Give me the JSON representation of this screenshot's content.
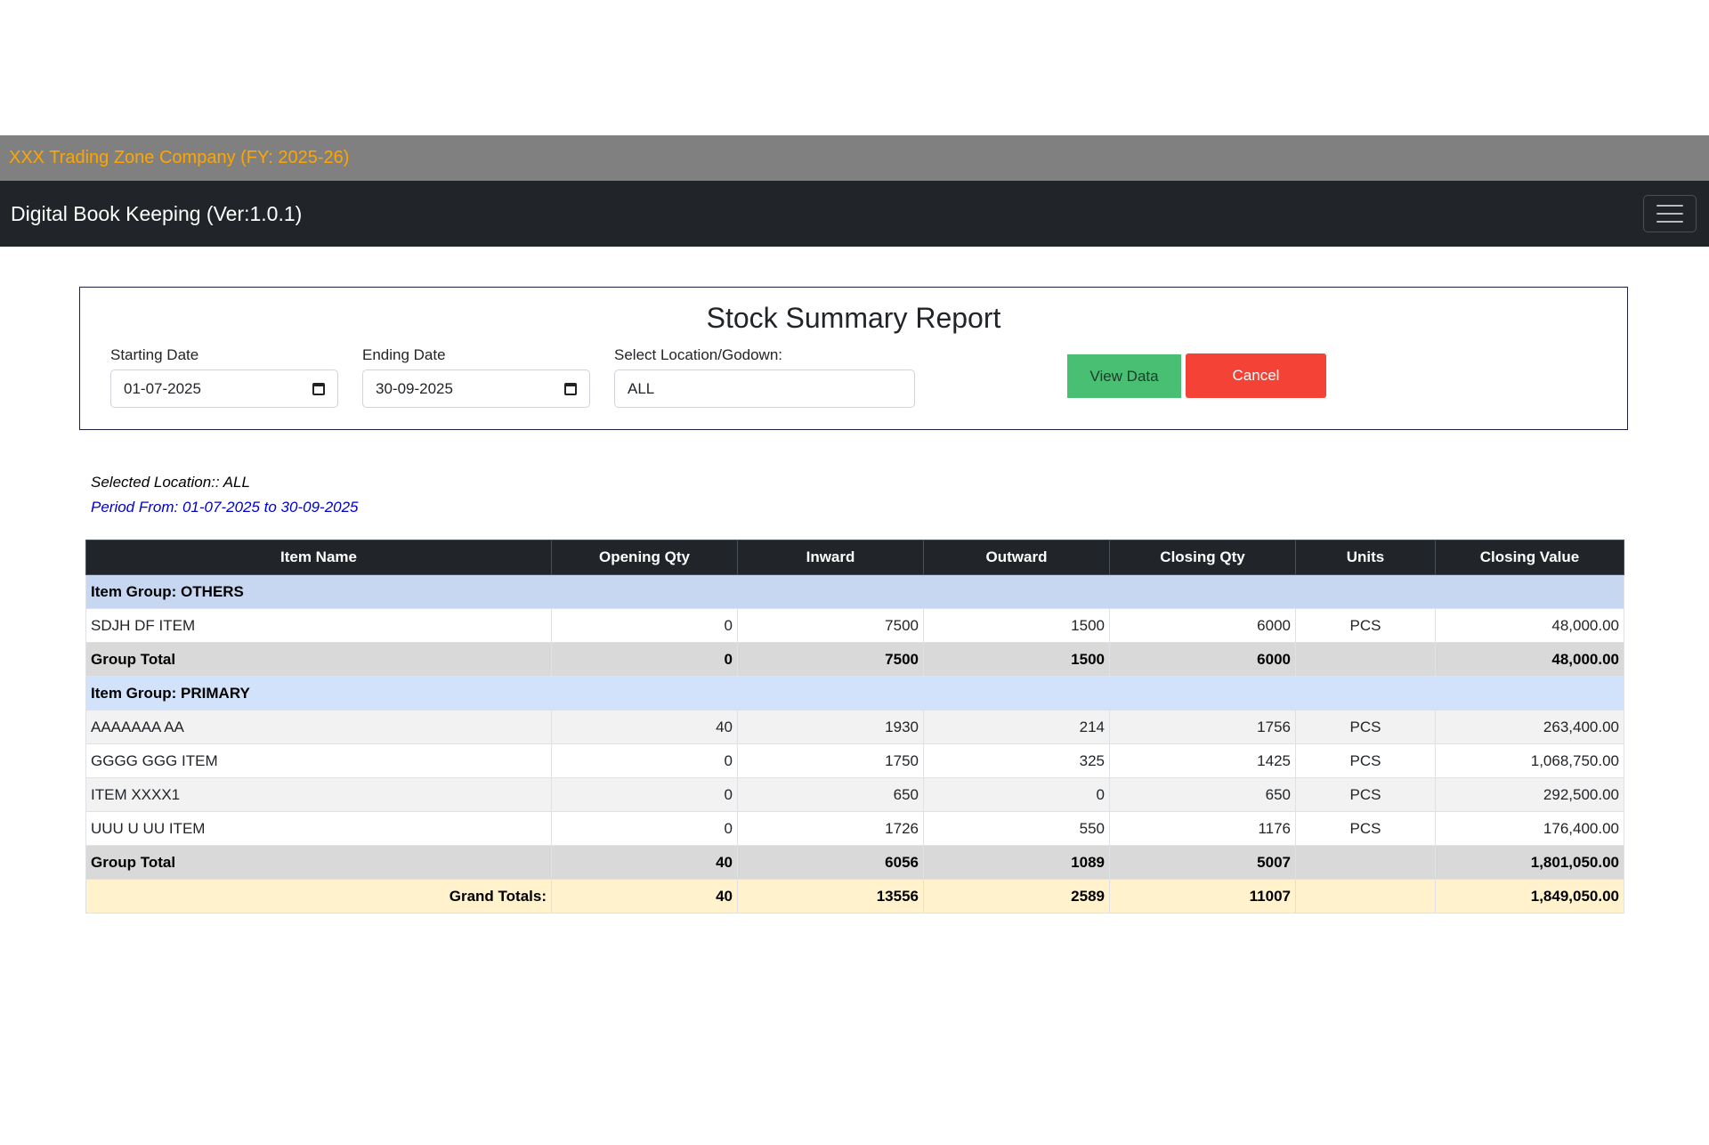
{
  "header": {
    "company": "XXX Trading Zone Company (FY: 2025-26)",
    "app_title": "Digital Book Keeping (Ver:1.0.1)"
  },
  "report": {
    "title": "Stock Summary Report",
    "start_label": "Starting Date",
    "start_value": "01-07-2025",
    "end_label": "Ending Date",
    "end_value": "30-09-2025",
    "location_label": "Select Location/Godown:",
    "location_value": "ALL",
    "view_button": "View Data",
    "cancel_button": "Cancel"
  },
  "info": {
    "location": "Selected Location:: ALL",
    "period": "Period From: 01-07-2025 to 30-09-2025"
  },
  "table": {
    "headers": [
      "Item Name",
      "Opening Qty",
      "Inward",
      "Outward",
      "Closing Qty",
      "Units",
      "Closing Value"
    ],
    "groups": [
      {
        "title": "Item Group: OTHERS",
        "items": [
          [
            "SDJH DF ITEM",
            "0",
            "7500",
            "1500",
            "6000",
            "PCS",
            "48,000.00"
          ]
        ],
        "total": [
          "Group Total",
          "0",
          "7500",
          "1500",
          "6000",
          "",
          "48,000.00"
        ]
      },
      {
        "title": "Item Group: PRIMARY",
        "items": [
          [
            "AAAAAAA AA",
            "40",
            "1930",
            "214",
            "1756",
            "PCS",
            "263,400.00"
          ],
          [
            "GGGG GGG ITEM",
            "0",
            "1750",
            "325",
            "1425",
            "PCS",
            "1,068,750.00"
          ],
          [
            "ITEM XXXX1",
            "0",
            "650",
            "0",
            "650",
            "PCS",
            "292,500.00"
          ],
          [
            "UUU U UU ITEM",
            "0",
            "1726",
            "550",
            "1176",
            "PCS",
            "176,400.00"
          ]
        ],
        "total": [
          "Group Total",
          "40",
          "6056",
          "1089",
          "5007",
          "",
          "1,801,050.00"
        ]
      }
    ],
    "grand": [
      "Grand Totals:",
      "40",
      "13556",
      "2589",
      "11007",
      "",
      "1,849,050.00"
    ]
  }
}
